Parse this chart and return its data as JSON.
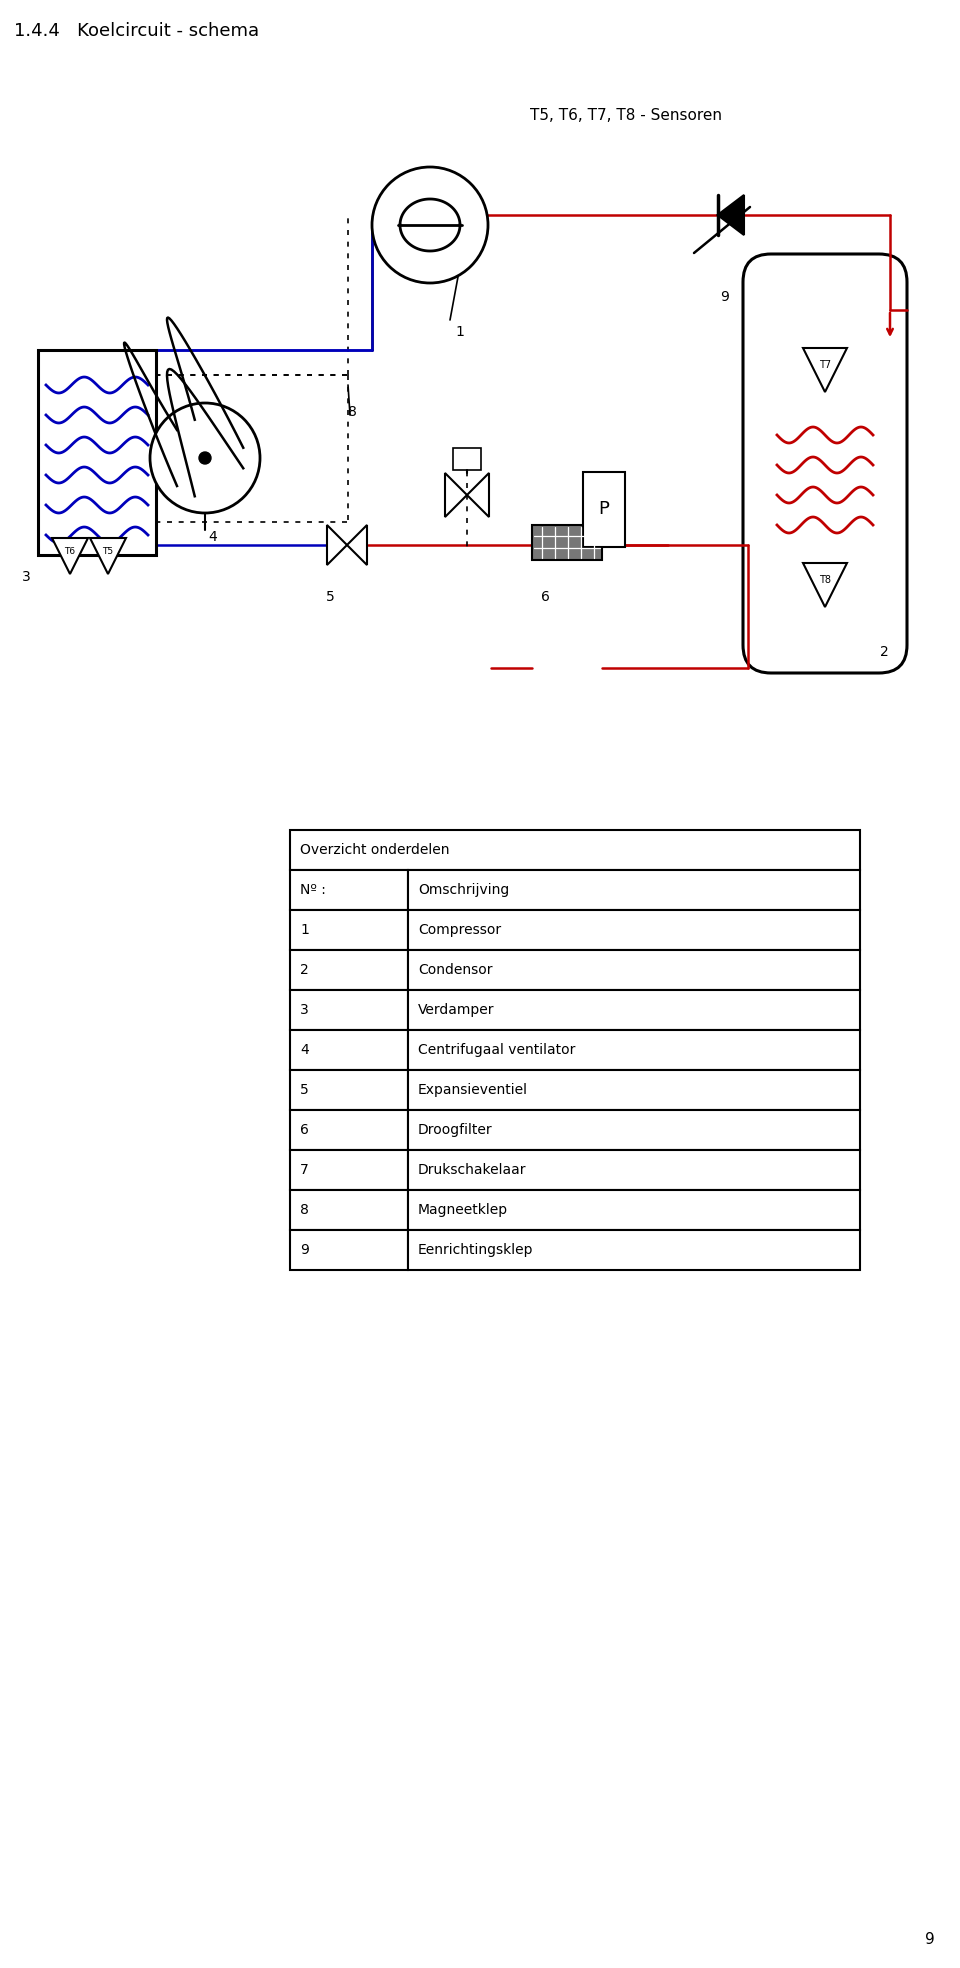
{
  "title": "1.4.4   Koelcircuit - schema",
  "subtitle": "T5, T6, T7, T8 - Sensoren",
  "table_title": "Overzicht onderdelen",
  "table_header": [
    "Nº :",
    "Omschrijving"
  ],
  "table_rows": [
    [
      "1",
      "Compressor"
    ],
    [
      "2",
      "Condensor"
    ],
    [
      "3",
      "Verdamper"
    ],
    [
      "4",
      "Centrifugaal ventilator"
    ],
    [
      "5",
      "Expansieventiel"
    ],
    [
      "6",
      "Droogfilter"
    ],
    [
      "7",
      "Drukschakelaar"
    ],
    [
      "8",
      "Magneetklep"
    ],
    [
      "9",
      "Eenrichtingsklep"
    ]
  ],
  "page_number": "9",
  "bg_color": "#ffffff",
  "RED": "#c00000",
  "BLUE": "#0000bb",
  "BLK": "#000000",
  "font_size_title": 13,
  "font_size_subtitle": 11,
  "font_size_table": 10,
  "font_size_label": 10
}
